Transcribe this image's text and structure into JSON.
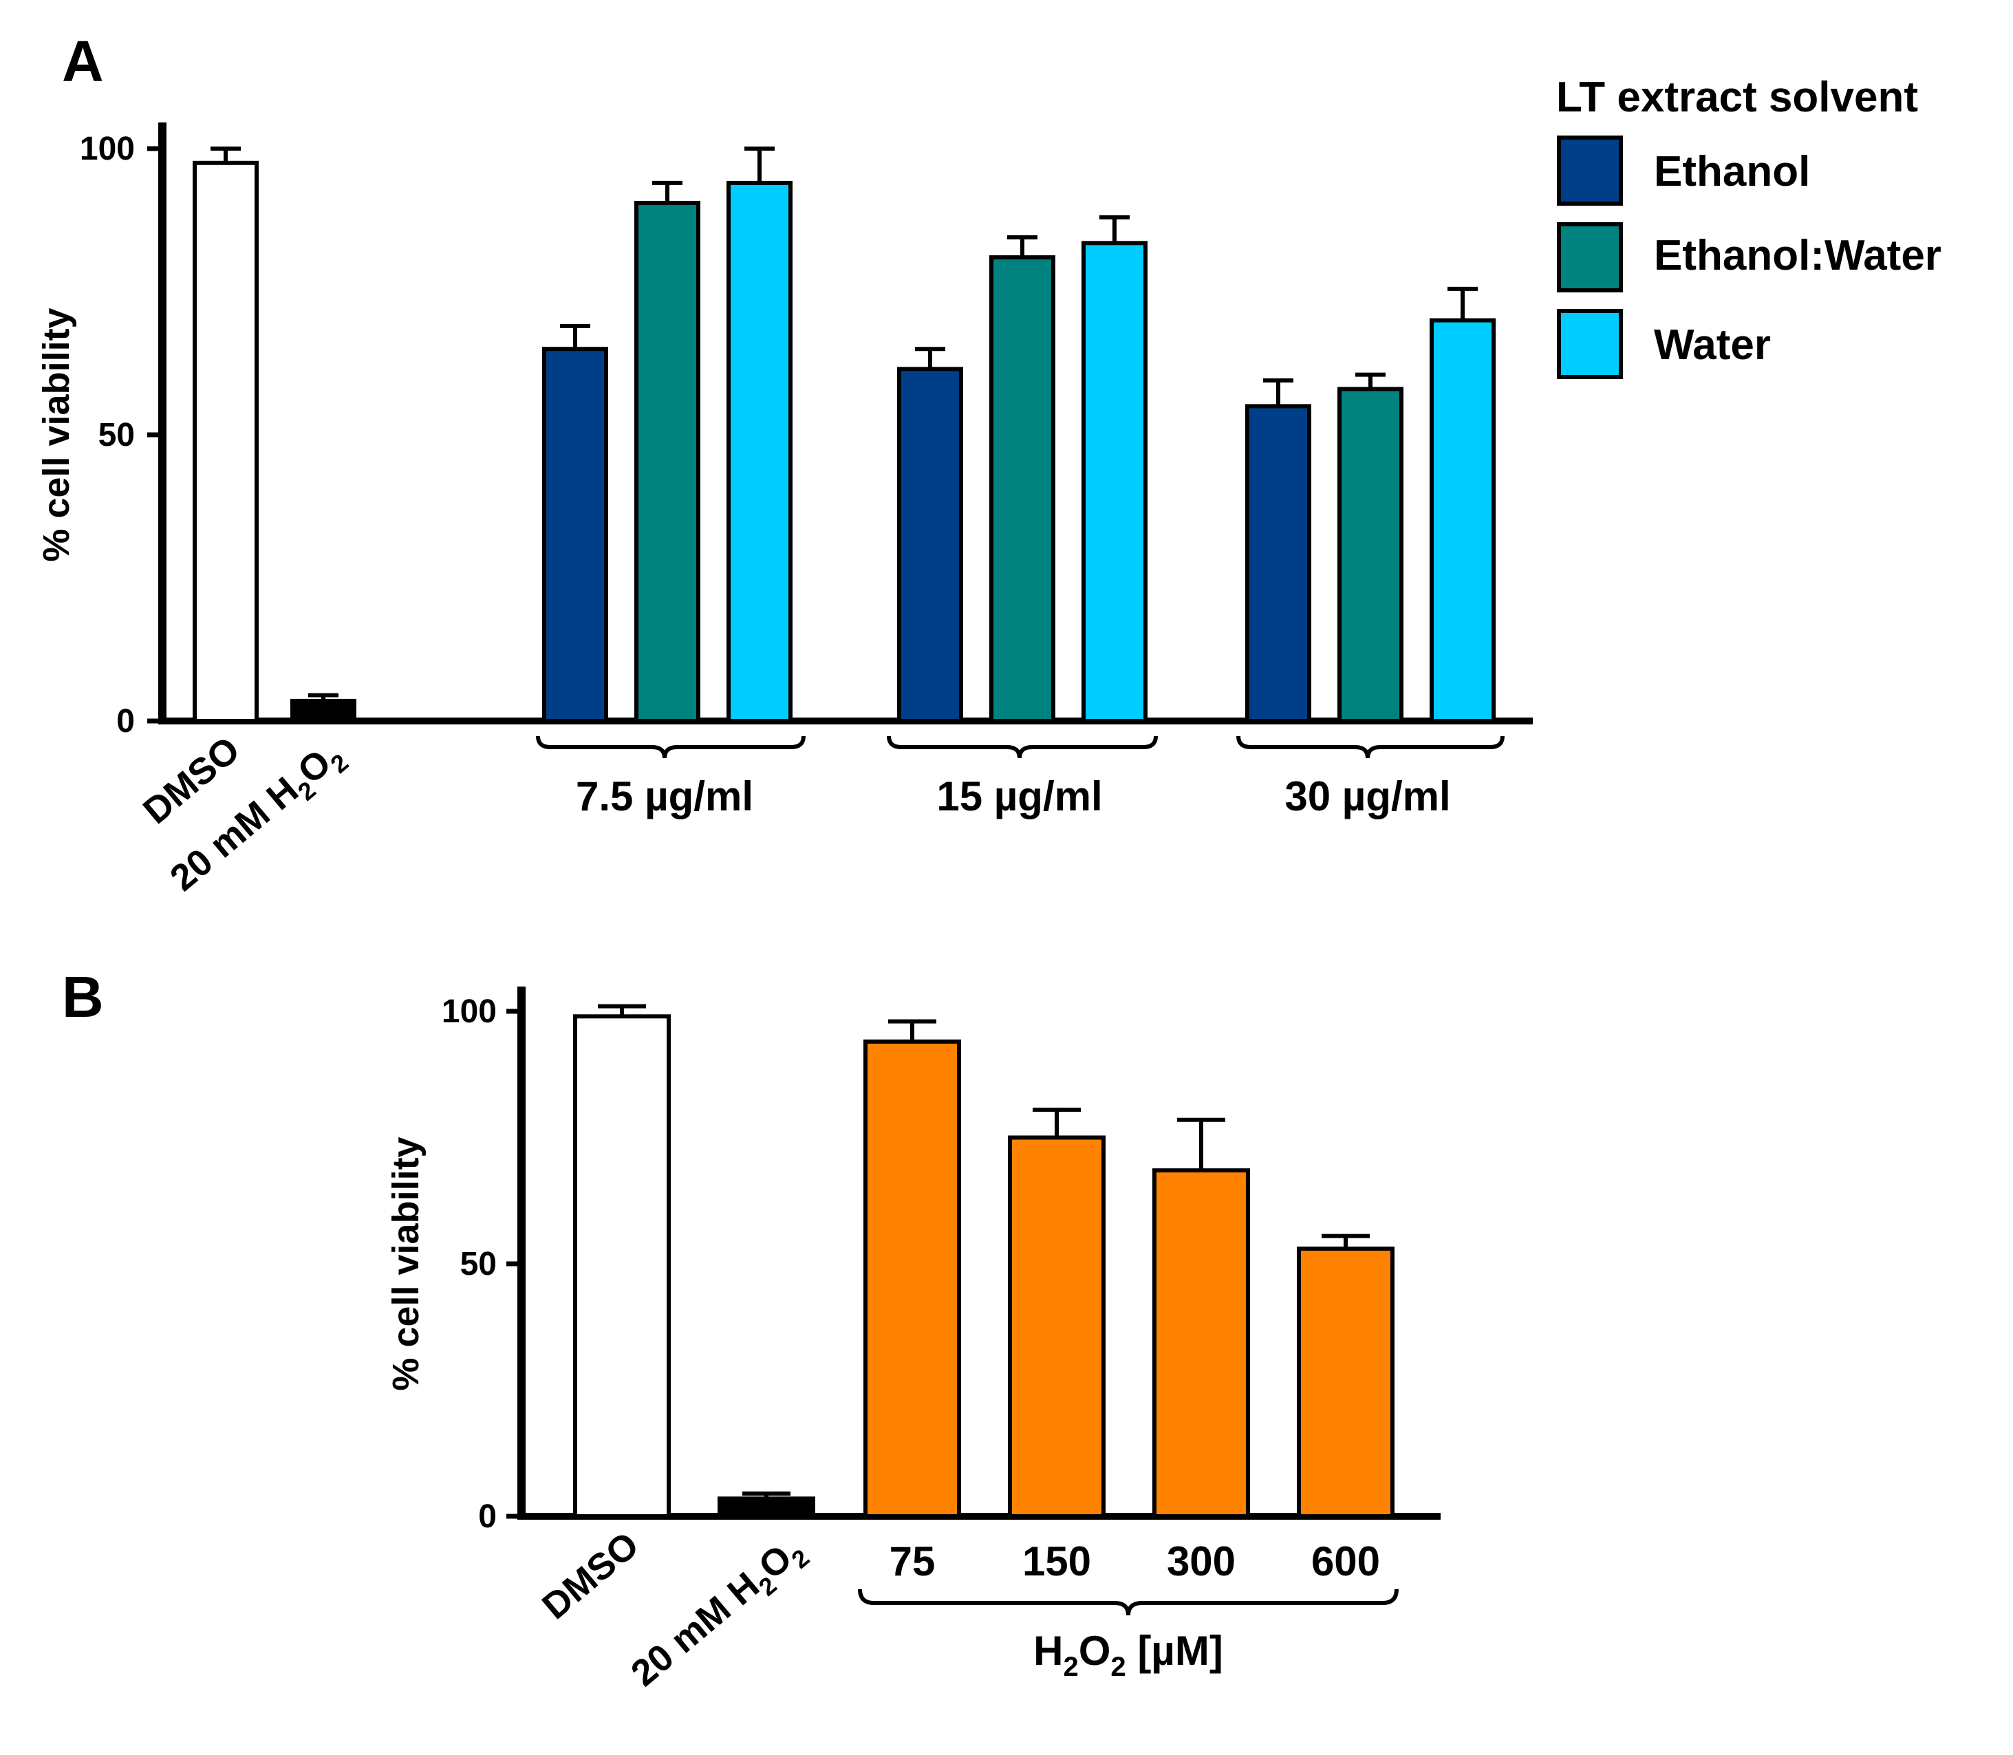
{
  "colors": {
    "dmso": "#ffffff",
    "h2o2_control": "#000000",
    "ethanol": "#003f87",
    "ethanol_water": "#00827f",
    "water": "#00ccff",
    "h2o2_dose": "#ff8200",
    "axis": "#000000"
  },
  "chart_data": [
    {
      "panel_label": "A",
      "type": "bar",
      "ylabel": "% cell viability",
      "ylim": [
        0,
        100
      ],
      "yticks": [
        "0",
        "50",
        "100"
      ],
      "legend": {
        "title": "LT extract solvent",
        "position": "top-right",
        "entries": [
          {
            "name": "Ethanol",
            "color_key": "ethanol"
          },
          {
            "name": "Ethanol:Water",
            "color_key": "ethanol_water"
          },
          {
            "name": "Water",
            "color_key": "water"
          }
        ]
      },
      "controls": [
        {
          "label": "DMSO",
          "value": 97.5,
          "error": 2.5,
          "color_key": "dmso"
        },
        {
          "label_main": "20 mM H",
          "label_sub1": "2",
          "label_mid": "O",
          "label_sub2": "2",
          "value": 3.5,
          "error": 1.0,
          "color_key": "h2o2_control"
        }
      ],
      "groups": [
        {
          "label": "7.5 µg/ml",
          "series_values": [
            65,
            90.5,
            94
          ],
          "errors": [
            4,
            3.5,
            6
          ]
        },
        {
          "label": "15 µg/ml",
          "series_values": [
            61.5,
            81,
            83.5
          ],
          "errors": [
            3.5,
            3.5,
            4.5
          ]
        },
        {
          "label": "30 µg/ml",
          "series_values": [
            55,
            58,
            70
          ],
          "errors": [
            4.5,
            2.5,
            5.5
          ]
        }
      ],
      "series_names": [
        "Ethanol",
        "Ethanol:Water",
        "Water"
      ]
    },
    {
      "panel_label": "B",
      "type": "bar",
      "ylabel": "% cell viability",
      "ylim": [
        0,
        100
      ],
      "yticks": [
        "0",
        "50",
        "100"
      ],
      "controls": [
        {
          "label": "DMSO",
          "value": 99,
          "error": 2.0,
          "color_key": "dmso"
        },
        {
          "label_main": "20 mM H",
          "label_sub1": "2",
          "label_mid": "O",
          "label_sub2": "2",
          "value": 3.5,
          "error": 1.0,
          "color_key": "h2o2_control"
        }
      ],
      "doses": [
        {
          "label": "75",
          "value": 94,
          "error": 4
        },
        {
          "label": "150",
          "value": 75,
          "error": 5.5
        },
        {
          "label": "300",
          "value": 68.5,
          "error": 10
        },
        {
          "label": "600",
          "value": 53,
          "error": 2.5
        }
      ],
      "dose_axis_label": {
        "main": "H",
        "sub1": "2",
        "mid": "O",
        "sub2": "2",
        "tail": " [µM]"
      }
    }
  ]
}
